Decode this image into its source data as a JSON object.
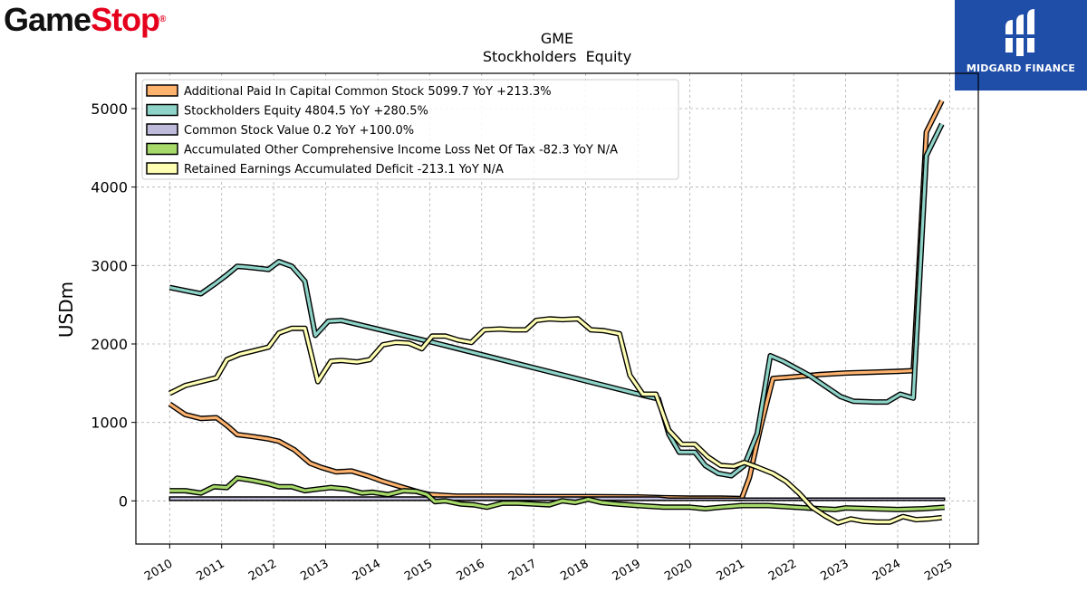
{
  "logos": {
    "left_game": "Game",
    "left_stop": "Stop",
    "left_reg": "®",
    "right": "MIDGARD FINANCE"
  },
  "colors": {
    "apic": "#fdb26e",
    "equity": "#8dd3c7",
    "common": "#bebada",
    "aoci": "#a6d96a",
    "retained": "#ffffb3"
  },
  "chart_data": {
    "type": "line",
    "title": "GME",
    "subtitle": "Stockholders  Equity",
    "ylabel": "USDm",
    "xlabel": "",
    "xlim": [
      2009.35,
      2025.55
    ],
    "ylim": [
      -550,
      5450
    ],
    "yticks": [
      0,
      1000,
      2000,
      3000,
      4000,
      5000
    ],
    "xticks": [
      2010,
      2011,
      2012,
      2013,
      2014,
      2015,
      2016,
      2017,
      2018,
      2019,
      2020,
      2021,
      2022,
      2023,
      2024,
      2025
    ],
    "grid": true,
    "legend_position": "top-left",
    "series": [
      {
        "name": "Additional Paid In Capital Common Stock  5099.7 YoY +213.3%",
        "color_key": "apic",
        "points": [
          [
            2010.0,
            1235
          ],
          [
            2010.3,
            1100
          ],
          [
            2010.6,
            1050
          ],
          [
            2010.9,
            1060
          ],
          [
            2011.1,
            960
          ],
          [
            2011.3,
            845
          ],
          [
            2011.6,
            820
          ],
          [
            2011.9,
            790
          ],
          [
            2012.1,
            760
          ],
          [
            2012.4,
            650
          ],
          [
            2012.7,
            480
          ],
          [
            2012.9,
            430
          ],
          [
            2013.2,
            370
          ],
          [
            2013.5,
            380
          ],
          [
            2013.8,
            320
          ],
          [
            2014.1,
            250
          ],
          [
            2014.5,
            170
          ],
          [
            2014.8,
            110
          ],
          [
            2015.0,
            80
          ],
          [
            2015.5,
            60
          ],
          [
            2016.0,
            60
          ],
          [
            2016.5,
            60
          ],
          [
            2017.0,
            55
          ],
          [
            2017.5,
            55
          ],
          [
            2018.0,
            55
          ],
          [
            2019.0,
            50
          ],
          [
            2019.5,
            40
          ],
          [
            2020.0,
            35
          ],
          [
            2020.6,
            35
          ],
          [
            2021.0,
            30
          ],
          [
            2021.15,
            300
          ],
          [
            2021.35,
            900
          ],
          [
            2021.6,
            1560
          ],
          [
            2022.0,
            1580
          ],
          [
            2022.5,
            1610
          ],
          [
            2023.0,
            1630
          ],
          [
            2023.5,
            1640
          ],
          [
            2024.0,
            1650
          ],
          [
            2024.3,
            1660
          ],
          [
            2024.55,
            4700
          ],
          [
            2024.85,
            5100
          ]
        ]
      },
      {
        "name": "Stockholders Equity  4804.5 YoY +280.5%",
        "color_key": "equity",
        "points": [
          [
            2010.0,
            2720
          ],
          [
            2010.3,
            2680
          ],
          [
            2010.6,
            2640
          ],
          [
            2010.9,
            2780
          ],
          [
            2011.1,
            2880
          ],
          [
            2011.3,
            2990
          ],
          [
            2011.5,
            2980
          ],
          [
            2011.9,
            2950
          ],
          [
            2012.1,
            3050
          ],
          [
            2012.35,
            2990
          ],
          [
            2012.6,
            2800
          ],
          [
            2012.8,
            2110
          ],
          [
            2013.05,
            2290
          ],
          [
            2013.3,
            2300
          ],
          [
            2015.0,
            2030
          ],
          [
            2019.2,
            1330
          ],
          [
            2019.4,
            1300
          ],
          [
            2019.6,
            850
          ],
          [
            2019.8,
            620
          ],
          [
            2020.1,
            620
          ],
          [
            2020.3,
            450
          ],
          [
            2020.55,
            350
          ],
          [
            2020.8,
            320
          ],
          [
            2021.05,
            450
          ],
          [
            2021.3,
            860
          ],
          [
            2021.55,
            1850
          ],
          [
            2021.8,
            1780
          ],
          [
            2022.3,
            1600
          ],
          [
            2022.9,
            1330
          ],
          [
            2023.15,
            1270
          ],
          [
            2023.55,
            1260
          ],
          [
            2023.8,
            1260
          ],
          [
            2024.05,
            1360
          ],
          [
            2024.3,
            1310
          ],
          [
            2024.55,
            4400
          ],
          [
            2024.85,
            4804
          ]
        ]
      },
      {
        "name": "Common Stock Value  0.2 YoY +100.0%",
        "color_key": "common",
        "points": [
          [
            2010.0,
            5
          ],
          [
            2024.9,
            5
          ]
        ],
        "top_points": [
          [
            2010.0,
            50
          ],
          [
            2019.4,
            50
          ],
          [
            2019.6,
            35
          ],
          [
            2024.9,
            35
          ]
        ]
      },
      {
        "name": "Accumulated Other Comprehensive Income Loss Net Of Tax  -82.3 YoY N/A",
        "color_key": "aoci",
        "points": [
          [
            2010.0,
            130
          ],
          [
            2010.3,
            130
          ],
          [
            2010.6,
            100
          ],
          [
            2010.85,
            180
          ],
          [
            2011.1,
            170
          ],
          [
            2011.3,
            290
          ],
          [
            2011.6,
            260
          ],
          [
            2011.9,
            220
          ],
          [
            2012.1,
            180
          ],
          [
            2012.35,
            180
          ],
          [
            2012.6,
            130
          ],
          [
            2012.85,
            150
          ],
          [
            2013.1,
            170
          ],
          [
            2013.4,
            150
          ],
          [
            2013.7,
            100
          ],
          [
            2013.9,
            110
          ],
          [
            2014.2,
            80
          ],
          [
            2014.5,
            130
          ],
          [
            2014.75,
            120
          ],
          [
            2014.95,
            80
          ],
          [
            2015.1,
            -10
          ],
          [
            2015.3,
            0
          ],
          [
            2015.6,
            -40
          ],
          [
            2015.85,
            -50
          ],
          [
            2016.1,
            -80
          ],
          [
            2016.4,
            -30
          ],
          [
            2016.7,
            -30
          ],
          [
            2017.0,
            -40
          ],
          [
            2017.3,
            -50
          ],
          [
            2017.55,
            0
          ],
          [
            2017.8,
            -20
          ],
          [
            2018.05,
            20
          ],
          [
            2018.3,
            -20
          ],
          [
            2018.6,
            -40
          ],
          [
            2019.0,
            -60
          ],
          [
            2019.5,
            -80
          ],
          [
            2020.0,
            -80
          ],
          [
            2020.3,
            -100
          ],
          [
            2020.6,
            -80
          ],
          [
            2021.0,
            -60
          ],
          [
            2021.5,
            -60
          ],
          [
            2022.0,
            -80
          ],
          [
            2022.5,
            -100
          ],
          [
            2022.8,
            -110
          ],
          [
            2023.0,
            -90
          ],
          [
            2023.5,
            -100
          ],
          [
            2024.0,
            -110
          ],
          [
            2024.5,
            -100
          ],
          [
            2024.9,
            -82
          ]
        ]
      },
      {
        "name": "Retained Earnings Accumulated Deficit  -213.1 YoY N/A",
        "color_key": "retained",
        "points": [
          [
            2010.0,
            1370
          ],
          [
            2010.3,
            1470
          ],
          [
            2010.6,
            1520
          ],
          [
            2010.9,
            1570
          ],
          [
            2011.1,
            1800
          ],
          [
            2011.35,
            1870
          ],
          [
            2011.6,
            1910
          ],
          [
            2011.9,
            1960
          ],
          [
            2012.1,
            2140
          ],
          [
            2012.35,
            2200
          ],
          [
            2012.6,
            2200
          ],
          [
            2012.85,
            1520
          ],
          [
            2013.1,
            1780
          ],
          [
            2013.3,
            1790
          ],
          [
            2013.6,
            1770
          ],
          [
            2013.85,
            1800
          ],
          [
            2014.1,
            1990
          ],
          [
            2014.35,
            2020
          ],
          [
            2014.6,
            2010
          ],
          [
            2014.85,
            1940
          ],
          [
            2015.05,
            2100
          ],
          [
            2015.3,
            2100
          ],
          [
            2015.55,
            2050
          ],
          [
            2015.8,
            2020
          ],
          [
            2016.05,
            2180
          ],
          [
            2016.35,
            2190
          ],
          [
            2016.6,
            2180
          ],
          [
            2016.85,
            2180
          ],
          [
            2017.05,
            2300
          ],
          [
            2017.3,
            2320
          ],
          [
            2017.55,
            2310
          ],
          [
            2017.85,
            2320
          ],
          [
            2018.1,
            2180
          ],
          [
            2018.35,
            2170
          ],
          [
            2018.65,
            2130
          ],
          [
            2018.85,
            1600
          ],
          [
            2019.1,
            1360
          ],
          [
            2019.35,
            1360
          ],
          [
            2019.6,
            900
          ],
          [
            2019.85,
            720
          ],
          [
            2020.1,
            720
          ],
          [
            2020.35,
            560
          ],
          [
            2020.6,
            450
          ],
          [
            2020.85,
            440
          ],
          [
            2021.05,
            490
          ],
          [
            2021.3,
            430
          ],
          [
            2021.6,
            350
          ],
          [
            2021.85,
            250
          ],
          [
            2022.1,
            100
          ],
          [
            2022.35,
            -80
          ],
          [
            2022.6,
            -190
          ],
          [
            2022.85,
            -280
          ],
          [
            2023.1,
            -230
          ],
          [
            2023.35,
            -260
          ],
          [
            2023.6,
            -270
          ],
          [
            2023.85,
            -270
          ],
          [
            2024.1,
            -200
          ],
          [
            2024.35,
            -240
          ],
          [
            2024.6,
            -230
          ],
          [
            2024.85,
            -213
          ]
        ]
      }
    ]
  }
}
